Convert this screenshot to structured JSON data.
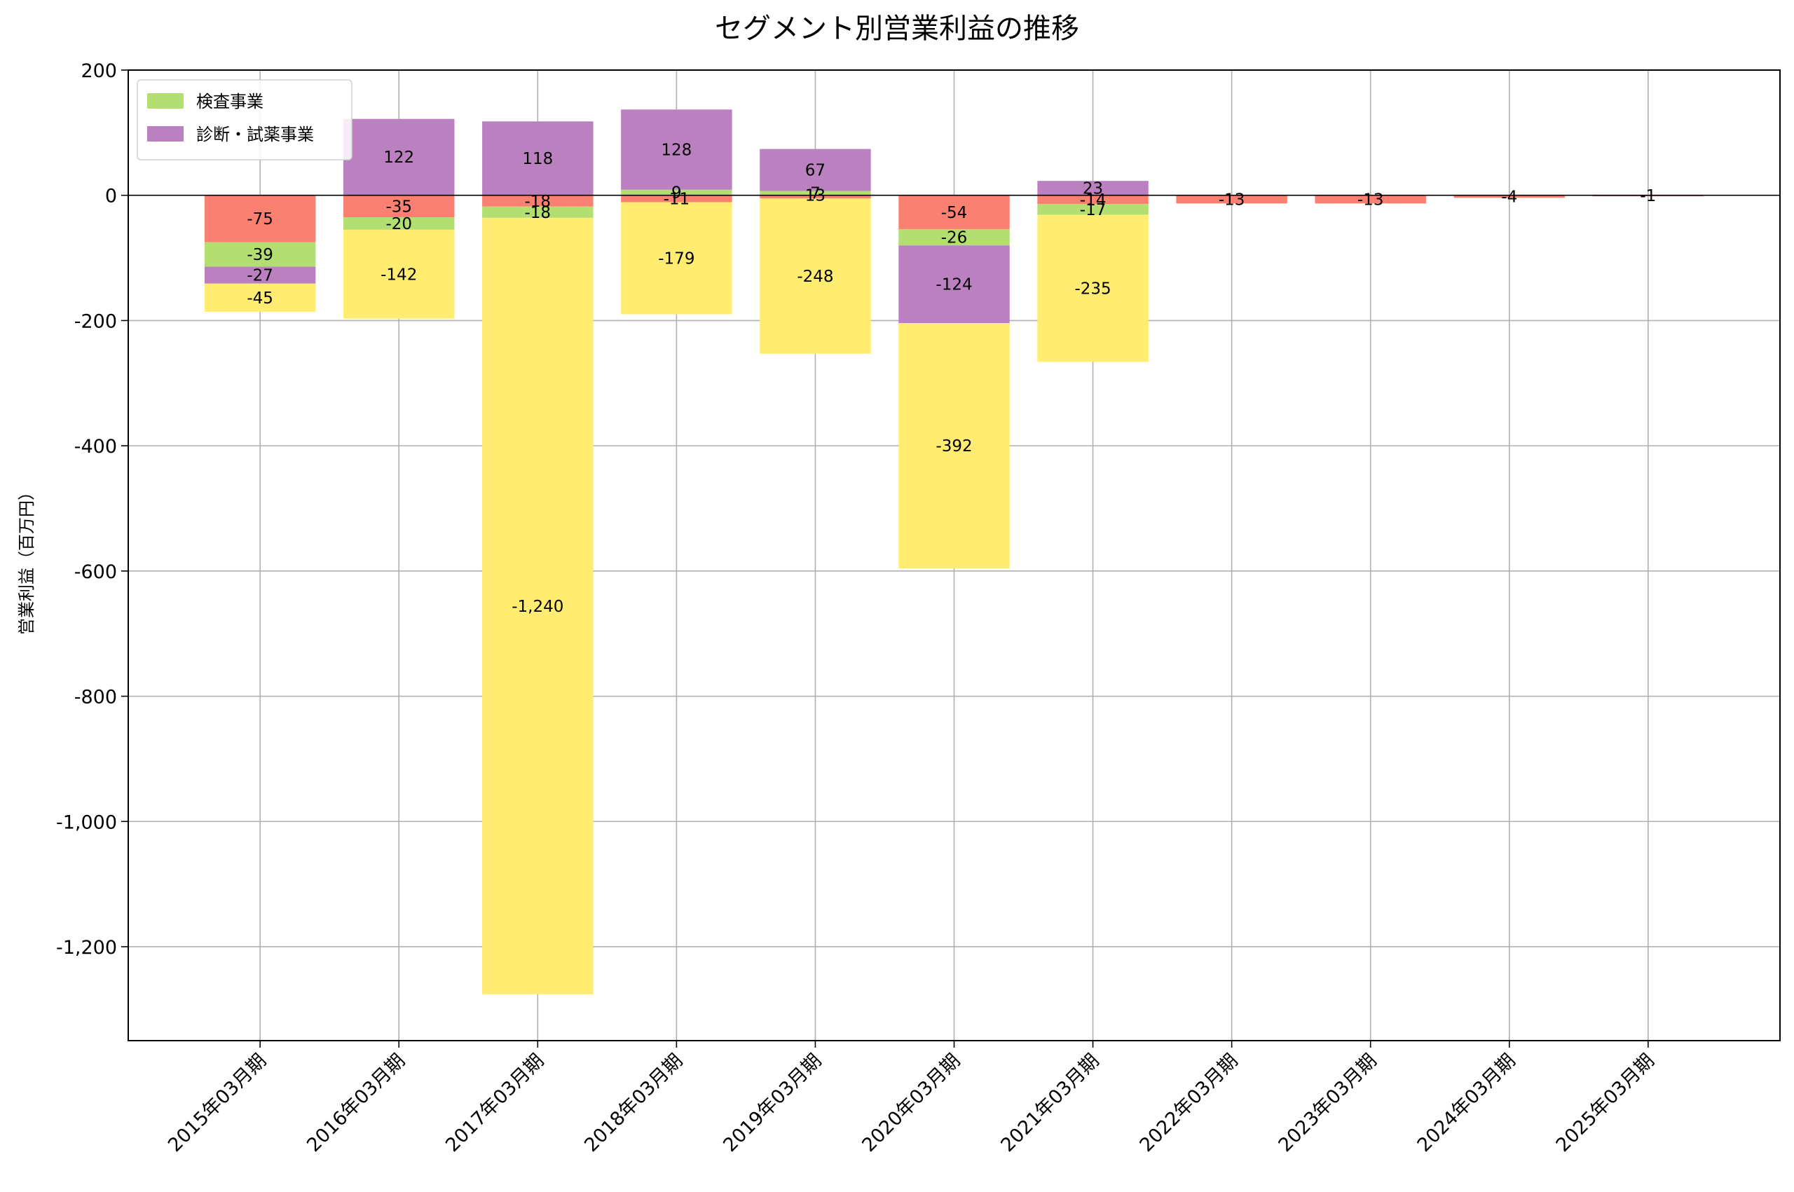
{
  "chart_data": {
    "type": "bar",
    "stacked": true,
    "title": "セグメント別営業利益の推移",
    "xlabel": "",
    "ylabel": "営業利益（百万円）",
    "ylim": [
      -1350,
      200
    ],
    "yticks": [
      200,
      0,
      -200,
      -400,
      -600,
      -800,
      -1000,
      -1200
    ],
    "ytick_labels": [
      "200",
      "0",
      "-200",
      "-400",
      "-600",
      "-800",
      "-1,000",
      "-1,200"
    ],
    "grid": true,
    "legend_position": "top-left",
    "categories": [
      "2015年03月期",
      "2016年03月期",
      "2017年03月期",
      "2018年03月期",
      "2019年03月期",
      "2020年03月期",
      "2021年03月期",
      "2022年03月期",
      "2023年03月期",
      "2024年03月期",
      "2025年03月期"
    ],
    "series": [
      {
        "key": "red",
        "name": "",
        "in_legend": false,
        "color": "#fa8072",
        "values": [
          -75,
          -35,
          -18,
          -11,
          -5,
          -54,
          -14,
          -13,
          -13,
          -4,
          -1
        ],
        "labels": [
          "-75",
          "-35",
          "-18",
          "-11",
          "",
          "-54",
          "-14",
          "-13",
          "-13",
          "-4",
          "-1"
        ]
      },
      {
        "key": "green",
        "name": "検査事業",
        "in_legend": true,
        "color": "#b3df72",
        "values": [
          -39,
          -20,
          -18,
          9,
          7,
          -26,
          -17,
          null,
          null,
          null,
          null
        ],
        "labels": [
          "-39",
          "-20",
          "-18",
          "9",
          "7",
          "-26",
          "-17",
          "",
          "",
          "",
          ""
        ]
      },
      {
        "key": "purple",
        "name": "診断・試薬事業",
        "in_legend": true,
        "color": "#bb80c0",
        "values": [
          -27,
          122,
          118,
          128,
          67,
          -124,
          23,
          null,
          null,
          null,
          null
        ],
        "labels": [
          "-27",
          "122",
          "118",
          "128",
          "67",
          "-124",
          "23",
          "",
          "",
          "",
          ""
        ]
      },
      {
        "key": "yellow",
        "name": "",
        "in_legend": false,
        "color": "#ffec70",
        "values": [
          -45,
          -142,
          -1240,
          -179,
          -248,
          -392,
          -235,
          null,
          null,
          null,
          null
        ],
        "labels": [
          "-45",
          "-142",
          "-1,240",
          "-179",
          "-248",
          "-392",
          "-235",
          "",
          "",
          "",
          ""
        ]
      }
    ],
    "extra_labels": [
      {
        "category_index": 4,
        "text": "13"
      }
    ]
  }
}
